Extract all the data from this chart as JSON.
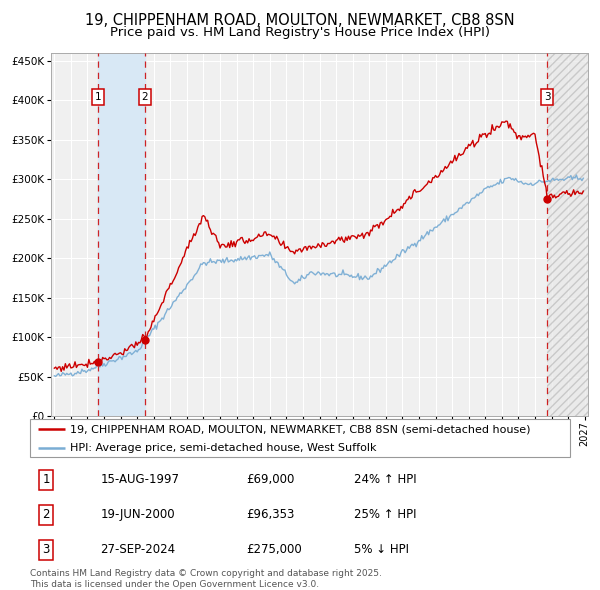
{
  "title": "19, CHIPPENHAM ROAD, MOULTON, NEWMARKET, CB8 8SN",
  "subtitle": "Price paid vs. HM Land Registry's House Price Index (HPI)",
  "legend_line1": "19, CHIPPENHAM ROAD, MOULTON, NEWMARKET, CB8 8SN (semi-detached house)",
  "legend_line2": "HPI: Average price, semi-detached house, West Suffolk",
  "footer": "Contains HM Land Registry data © Crown copyright and database right 2025.\nThis data is licensed under the Open Government Licence v3.0.",
  "transactions": [
    {
      "num": 1,
      "date": "15-AUG-1997",
      "year": 1997.62,
      "price": 69000,
      "pct": "24%",
      "dir": "↑"
    },
    {
      "num": 2,
      "date": "19-JUN-2000",
      "year": 2000.46,
      "price": 96353,
      "pct": "25%",
      "dir": "↑"
    },
    {
      "num": 3,
      "date": "27-SEP-2024",
      "year": 2024.74,
      "price": 275000,
      "pct": "5%",
      "dir": "↓"
    }
  ],
  "hpi_color": "#7aadd4",
  "price_color": "#cc0000",
  "dot_color": "#cc0000",
  "bg_color": "#f0f0f0",
  "grid_color": "#ffffff",
  "shade_color": "#d8e8f5",
  "ylim": [
    0,
    460000
  ],
  "yticks": [
    0,
    50000,
    100000,
    150000,
    200000,
    250000,
    300000,
    350000,
    400000,
    450000
  ],
  "xlim_start": 1994.8,
  "xlim_end": 2027.2,
  "title_fontsize": 10.5,
  "subtitle_fontsize": 9.5,
  "tick_fontsize": 7.5,
  "legend_fontsize": 8,
  "footer_fontsize": 6.5,
  "table_fontsize": 8.5
}
